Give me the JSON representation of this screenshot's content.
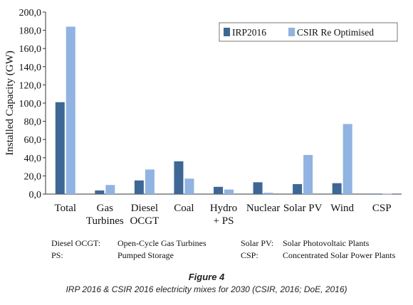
{
  "chart_data": {
    "type": "bar",
    "ylabel": "Installed Capacity (GW)",
    "xlabel": "",
    "title": "",
    "ylim": [
      0,
      200
    ],
    "yticks": [
      "0,0",
      "20,0",
      "40,0",
      "60,0",
      "80,0",
      "100,0",
      "120,0",
      "140,0",
      "160,0",
      "180,0",
      "200,0"
    ],
    "categories": [
      [
        "Total"
      ],
      [
        "Gas",
        "Turbines"
      ],
      [
        "Diesel",
        "OCGT"
      ],
      [
        "Coal"
      ],
      [
        "Hydro",
        "+ PS"
      ],
      [
        "Nuclear"
      ],
      [
        "Solar PV"
      ],
      [
        "Wind"
      ],
      [
        "CSP"
      ]
    ],
    "series": [
      {
        "name": "IRP2016",
        "color": "#3d6797",
        "values": [
          101,
          4,
          15,
          36,
          8,
          13,
          11,
          12,
          0.5
        ]
      },
      {
        "name": "CSIR Re Optimised",
        "color": "#8fb3e3",
        "values": [
          184,
          10,
          27,
          17,
          5,
          1.5,
          43,
          77,
          0.3
        ]
      }
    ],
    "legend_position": "top-right",
    "grid": false
  },
  "glossary": {
    "left": [
      {
        "abbr": "Diesel OCGT:",
        "meaning": "Open-Cycle Gas Turbines"
      },
      {
        "abbr": "PS:",
        "meaning": "Pumped Storage"
      }
    ],
    "right": [
      {
        "abbr": "Solar PV:",
        "meaning": "Solar Photovoltaic Plants"
      },
      {
        "abbr": "CSP:",
        "meaning": "Concentrated Solar Power Plants"
      }
    ]
  },
  "caption": {
    "figure_label": "Figure 4",
    "text": "IRP 2016 & CSIR 2016 electricity mixes for 2030 (CSIR, 2016; DoE, 2016)"
  }
}
